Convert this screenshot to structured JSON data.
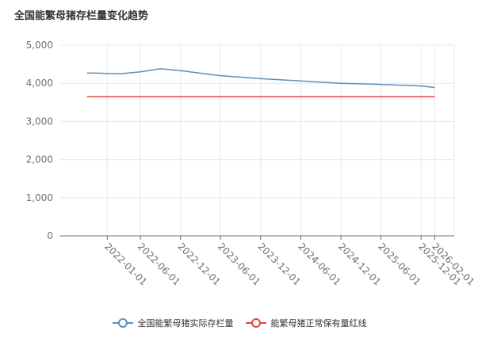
{
  "chart_data": {
    "type": "line",
    "title": "全国能繁母猪存栏量变化趋势",
    "xlabel": "",
    "ylabel": "",
    "ylim": [
      0,
      5000
    ],
    "yticks": [
      "0",
      "1,000",
      "2,000",
      "3,000",
      "4,000",
      "5,000"
    ],
    "categories": [
      "2022-01-01",
      "2022-06-01",
      "2022-12-01",
      "2023-06-01",
      "2023-12-01",
      "2024-06-01",
      "2024-12-01",
      "2025-06-01",
      "2025-12-01",
      "2026-02-01"
    ],
    "grid": true,
    "legend_position": "bottom",
    "series": [
      {
        "name": "全国能繁母猪实际存栏量",
        "color": "#5b8fbd",
        "points": [
          {
            "x": "2021-10-01",
            "y": 4270
          },
          {
            "x": "2022-01-01",
            "y": 4260
          },
          {
            "x": "2022-03-01",
            "y": 4250
          },
          {
            "x": "2022-06-01",
            "y": 4300
          },
          {
            "x": "2022-09-01",
            "y": 4380
          },
          {
            "x": "2022-12-01",
            "y": 4330
          },
          {
            "x": "2023-06-01",
            "y": 4200
          },
          {
            "x": "2023-12-01",
            "y": 4120
          },
          {
            "x": "2024-06-01",
            "y": 4060
          },
          {
            "x": "2024-12-01",
            "y": 4000
          },
          {
            "x": "2025-06-01",
            "y": 3970
          },
          {
            "x": "2025-12-01",
            "y": 3930
          },
          {
            "x": "2026-02-01",
            "y": 3890
          }
        ]
      },
      {
        "name": "能繁母猪正常保有量红线",
        "color": "#e0473e",
        "points": [
          {
            "x": "2021-10-01",
            "y": 3650
          },
          {
            "x": "2026-02-01",
            "y": 3650
          }
        ]
      }
    ]
  }
}
